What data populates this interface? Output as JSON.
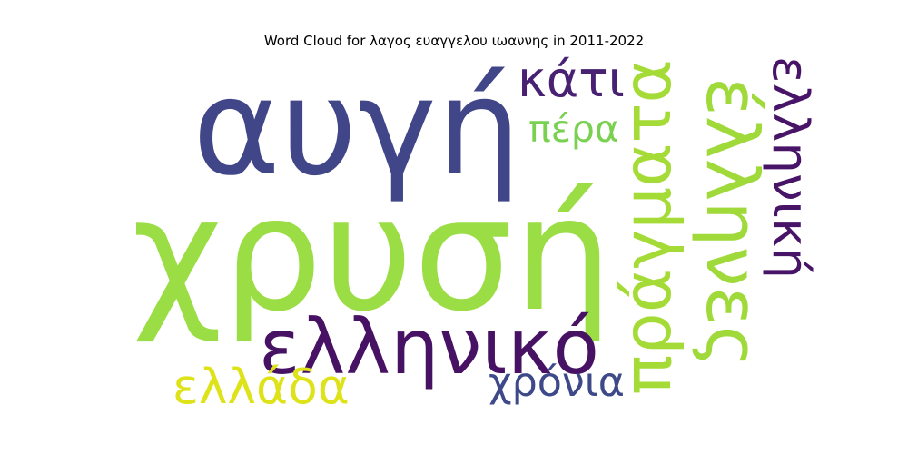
{
  "title": "Word Cloud for λαγος ευαγγελου ιωαννης in 2011-2022",
  "words": [
    {
      "key": "xrysi",
      "text": "χρυσή",
      "color": "#9bdd44"
    },
    {
      "key": "avgi",
      "text": "αυγή",
      "color": "#404688"
    },
    {
      "key": "ellinikos",
      "text": "ελληνικό",
      "color": "#471164"
    },
    {
      "key": "pragmata",
      "text": "πράγματα",
      "color": "#a5db36"
    },
    {
      "key": "ellines",
      "text": "έλληνες",
      "color": "#9fda3a"
    },
    {
      "key": "elliniki",
      "text": "ελληνική",
      "color": "#481467"
    },
    {
      "key": "kati",
      "text": "κάτι",
      "color": "#482173"
    },
    {
      "key": "pera",
      "text": "πέρα",
      "color": "#7ad151"
    },
    {
      "key": "ellada",
      "text": "ελλάδα",
      "color": "#dde318"
    },
    {
      "key": "xronia",
      "text": "χρόνια",
      "color": "#3e4989"
    }
  ]
}
